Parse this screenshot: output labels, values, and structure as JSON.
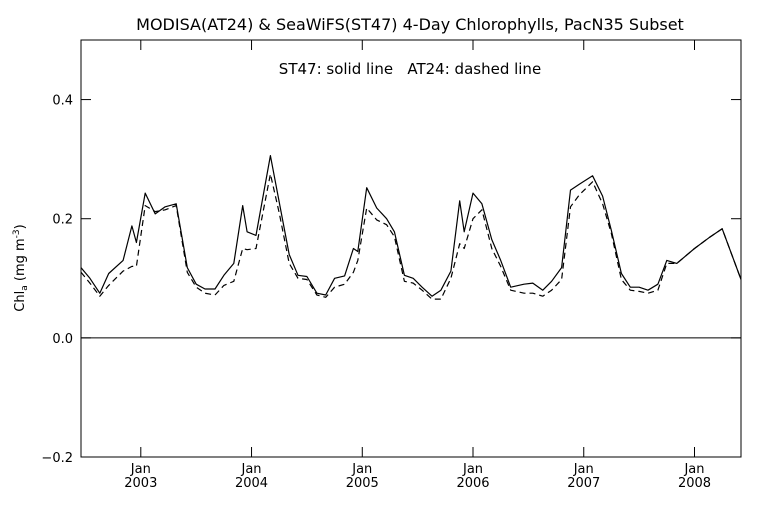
{
  "chart_data": {
    "type": "line",
    "title": "MODISA(AT24) & SeaWiFS(ST47) 4-Day Chlorophylls, PacN35 Subset",
    "annotation": "ST47: solid line   AT24: dashed line",
    "ylabel": "Chl",
    "ylabel_sub": "a",
    "ylabel_unit_open": " (mg m",
    "ylabel_unit_sup": "-3",
    "ylabel_unit_close": ")",
    "xlim": [
      2002.46,
      2008.42
    ],
    "ylim": [
      -0.2,
      0.5
    ],
    "yticks": [
      {
        "value": 0.4,
        "label": "0.4"
      },
      {
        "value": 0.2,
        "label": "0.2"
      },
      {
        "value": 0.0,
        "label": "0.0"
      },
      {
        "value": -0.2,
        "label": "−0.2"
      }
    ],
    "xticks": [
      {
        "value": 2003.0,
        "month": "Jan",
        "year": "2003"
      },
      {
        "value": 2004.0,
        "month": "Jan",
        "year": "2004"
      },
      {
        "value": 2005.0,
        "month": "Jan",
        "year": "2005"
      },
      {
        "value": 2006.0,
        "month": "Jan",
        "year": "2006"
      },
      {
        "value": 2007.0,
        "month": "Jan",
        "year": "2007"
      },
      {
        "value": 2008.0,
        "month": "Jan",
        "year": "2008"
      }
    ],
    "zero_line": 0.0,
    "series": [
      {
        "name": "ST47",
        "style": "solid",
        "points": [
          [
            2002.46,
            0.118
          ],
          [
            2002.54,
            0.1
          ],
          [
            2002.63,
            0.075
          ],
          [
            2002.71,
            0.108
          ],
          [
            2002.84,
            0.13
          ],
          [
            2002.92,
            0.188
          ],
          [
            2002.96,
            0.16
          ],
          [
            2003.04,
            0.243
          ],
          [
            2003.13,
            0.208
          ],
          [
            2003.22,
            0.22
          ],
          [
            2003.32,
            0.225
          ],
          [
            2003.42,
            0.118
          ],
          [
            2003.5,
            0.09
          ],
          [
            2003.58,
            0.082
          ],
          [
            2003.67,
            0.082
          ],
          [
            2003.75,
            0.105
          ],
          [
            2003.84,
            0.125
          ],
          [
            2003.92,
            0.222
          ],
          [
            2003.96,
            0.178
          ],
          [
            2004.04,
            0.172
          ],
          [
            2004.17,
            0.306
          ],
          [
            2004.25,
            0.228
          ],
          [
            2004.34,
            0.14
          ],
          [
            2004.42,
            0.105
          ],
          [
            2004.5,
            0.103
          ],
          [
            2004.59,
            0.075
          ],
          [
            2004.67,
            0.072
          ],
          [
            2004.75,
            0.1
          ],
          [
            2004.84,
            0.104
          ],
          [
            2004.92,
            0.15
          ],
          [
            2004.96,
            0.145
          ],
          [
            2005.04,
            0.252
          ],
          [
            2005.13,
            0.218
          ],
          [
            2005.22,
            0.2
          ],
          [
            2005.29,
            0.178
          ],
          [
            2005.38,
            0.105
          ],
          [
            2005.46,
            0.1
          ],
          [
            2005.54,
            0.085
          ],
          [
            2005.63,
            0.07
          ],
          [
            2005.71,
            0.08
          ],
          [
            2005.8,
            0.112
          ],
          [
            2005.88,
            0.23
          ],
          [
            2005.92,
            0.178
          ],
          [
            2006.0,
            0.243
          ],
          [
            2006.08,
            0.225
          ],
          [
            2006.17,
            0.165
          ],
          [
            2006.25,
            0.13
          ],
          [
            2006.34,
            0.085
          ],
          [
            2006.46,
            0.09
          ],
          [
            2006.54,
            0.092
          ],
          [
            2006.63,
            0.08
          ],
          [
            2006.71,
            0.095
          ],
          [
            2006.8,
            0.118
          ],
          [
            2006.88,
            0.248
          ],
          [
            2006.96,
            0.258
          ],
          [
            2007.08,
            0.272
          ],
          [
            2007.17,
            0.238
          ],
          [
            2007.25,
            0.18
          ],
          [
            2007.34,
            0.108
          ],
          [
            2007.42,
            0.085
          ],
          [
            2007.5,
            0.085
          ],
          [
            2007.58,
            0.08
          ],
          [
            2007.67,
            0.09
          ],
          [
            2007.75,
            0.13
          ],
          [
            2007.84,
            0.125
          ],
          [
            2008.0,
            0.15
          ],
          [
            2008.13,
            0.168
          ],
          [
            2008.25,
            0.183
          ],
          [
            2008.42,
            0.098
          ]
        ]
      },
      {
        "name": "AT24",
        "style": "dashed",
        "points": [
          [
            2002.46,
            0.11
          ],
          [
            2002.54,
            0.092
          ],
          [
            2002.63,
            0.07
          ],
          [
            2002.71,
            0.088
          ],
          [
            2002.84,
            0.112
          ],
          [
            2002.92,
            0.12
          ],
          [
            2002.96,
            0.12
          ],
          [
            2003.04,
            0.222
          ],
          [
            2003.13,
            0.212
          ],
          [
            2003.22,
            0.215
          ],
          [
            2003.32,
            0.222
          ],
          [
            2003.42,
            0.11
          ],
          [
            2003.5,
            0.085
          ],
          [
            2003.58,
            0.075
          ],
          [
            2003.67,
            0.072
          ],
          [
            2003.75,
            0.088
          ],
          [
            2003.84,
            0.095
          ],
          [
            2003.92,
            0.15
          ],
          [
            2003.96,
            0.148
          ],
          [
            2004.04,
            0.15
          ],
          [
            2004.17,
            0.275
          ],
          [
            2004.25,
            0.21
          ],
          [
            2004.34,
            0.125
          ],
          [
            2004.42,
            0.1
          ],
          [
            2004.5,
            0.098
          ],
          [
            2004.59,
            0.072
          ],
          [
            2004.67,
            0.068
          ],
          [
            2004.75,
            0.085
          ],
          [
            2004.84,
            0.09
          ],
          [
            2004.92,
            0.11
          ],
          [
            2004.96,
            0.13
          ],
          [
            2005.04,
            0.218
          ],
          [
            2005.13,
            0.198
          ],
          [
            2005.22,
            0.19
          ],
          [
            2005.29,
            0.17
          ],
          [
            2005.38,
            0.095
          ],
          [
            2005.46,
            0.092
          ],
          [
            2005.54,
            0.08
          ],
          [
            2005.63,
            0.065
          ],
          [
            2005.71,
            0.065
          ],
          [
            2005.8,
            0.1
          ],
          [
            2005.88,
            0.158
          ],
          [
            2005.92,
            0.15
          ],
          [
            2006.0,
            0.2
          ],
          [
            2006.08,
            0.215
          ],
          [
            2006.17,
            0.15
          ],
          [
            2006.25,
            0.12
          ],
          [
            2006.34,
            0.08
          ],
          [
            2006.46,
            0.075
          ],
          [
            2006.54,
            0.075
          ],
          [
            2006.63,
            0.07
          ],
          [
            2006.71,
            0.08
          ],
          [
            2006.8,
            0.098
          ],
          [
            2006.88,
            0.22
          ],
          [
            2006.96,
            0.24
          ],
          [
            2007.08,
            0.262
          ],
          [
            2007.17,
            0.225
          ],
          [
            2007.25,
            0.175
          ],
          [
            2007.34,
            0.098
          ],
          [
            2007.42,
            0.08
          ],
          [
            2007.5,
            0.078
          ],
          [
            2007.58,
            0.075
          ],
          [
            2007.67,
            0.08
          ],
          [
            2007.75,
            0.125
          ],
          [
            2007.84,
            0.125
          ],
          [
            2008.0,
            0.15
          ],
          [
            2008.13,
            0.168
          ],
          [
            2008.25,
            0.183
          ],
          [
            2008.42,
            0.098
          ]
        ]
      }
    ]
  }
}
